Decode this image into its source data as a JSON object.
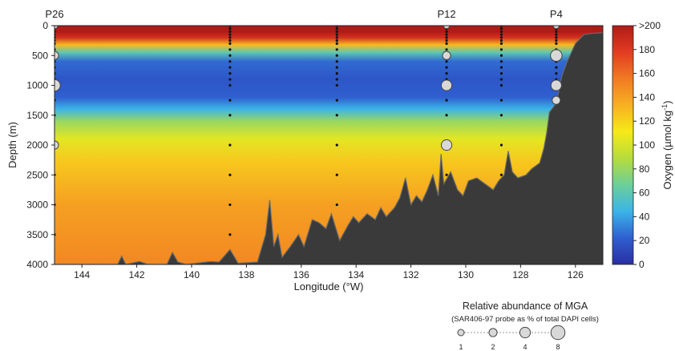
{
  "chart_data": {
    "type": "heatmap",
    "xlabel": "Longitude (°W)",
    "ylabel": "Depth (m)",
    "xlim": [
      145,
      125
    ],
    "ylim": [
      0,
      4000
    ],
    "x_ticks": [
      "144",
      "142",
      "140",
      "138",
      "136",
      "134",
      "132",
      "130",
      "128",
      "126"
    ],
    "y_ticks": [
      "0",
      "500",
      "1000",
      "1500",
      "2000",
      "2500",
      "3000",
      "3500",
      "4000"
    ],
    "colorbar": {
      "label": "Oxygen (µmol kg",
      "label_exponent": "-1",
      "label_close": ")",
      "ticks": [
        ">200",
        "180",
        "160",
        "140",
        "120",
        "100",
        "80",
        "60",
        "40",
        "20",
        "0"
      ],
      "range": [
        0,
        200
      ],
      "colors": [
        "#2a2fa3",
        "#2f5fcf",
        "#3bb4e8",
        "#6ccf9a",
        "#b6dc3c",
        "#f6ea18",
        "#f7b021",
        "#f07b23",
        "#e23c22",
        "#b01a17"
      ]
    },
    "oxygen_profile": [
      {
        "depth": 0,
        "oxygen": 210
      },
      {
        "depth": 100,
        "oxygen": 205
      },
      {
        "depth": 200,
        "oxygen": 185
      },
      {
        "depth": 320,
        "oxygen": 130
      },
      {
        "depth": 450,
        "oxygen": 60
      },
      {
        "depth": 600,
        "oxygen": 25
      },
      {
        "depth": 900,
        "oxygen": 18
      },
      {
        "depth": 1200,
        "oxygen": 22
      },
      {
        "depth": 1400,
        "oxygen": 45
      },
      {
        "depth": 1600,
        "oxygen": 80
      },
      {
        "depth": 1900,
        "oxygen": 105
      },
      {
        "depth": 2300,
        "oxygen": 125
      },
      {
        "depth": 3000,
        "oxygen": 140
      },
      {
        "depth": 4000,
        "oxygen": 150
      }
    ],
    "seafloor": [
      [
        145,
        4000
      ],
      [
        142.7,
        4000
      ],
      [
        142.55,
        3860
      ],
      [
        142.4,
        4000
      ],
      [
        141.9,
        3950
      ],
      [
        141.6,
        4000
      ],
      [
        140.9,
        4000
      ],
      [
        140.7,
        3800
      ],
      [
        140.5,
        3960
      ],
      [
        140.2,
        4000
      ],
      [
        139.3,
        3950
      ],
      [
        139.0,
        3960
      ],
      [
        138.6,
        3750
      ],
      [
        138.3,
        3980
      ],
      [
        137.6,
        3960
      ],
      [
        137.3,
        3500
      ],
      [
        137.15,
        2920
      ],
      [
        137.0,
        3700
      ],
      [
        136.85,
        3500
      ],
      [
        136.7,
        3880
      ],
      [
        136.4,
        3700
      ],
      [
        136.1,
        3500
      ],
      [
        135.9,
        3700
      ],
      [
        135.6,
        3250
      ],
      [
        135.35,
        3300
      ],
      [
        135.1,
        3400
      ],
      [
        134.9,
        3150
      ],
      [
        134.6,
        3600
      ],
      [
        134.3,
        3350
      ],
      [
        134.1,
        3200
      ],
      [
        133.9,
        3300
      ],
      [
        133.6,
        3150
      ],
      [
        133.3,
        3250
      ],
      [
        133.1,
        3050
      ],
      [
        132.9,
        3200
      ],
      [
        132.6,
        3050
      ],
      [
        132.4,
        2880
      ],
      [
        132.2,
        2550
      ],
      [
        132.0,
        3000
      ],
      [
        131.8,
        2850
      ],
      [
        131.6,
        2950
      ],
      [
        131.4,
        2750
      ],
      [
        131.2,
        2500
      ],
      [
        131.0,
        2850
      ],
      [
        130.9,
        2150
      ],
      [
        130.8,
        2650
      ],
      [
        130.55,
        2450
      ],
      [
        130.3,
        2750
      ],
      [
        130.1,
        2850
      ],
      [
        129.9,
        2600
      ],
      [
        129.6,
        2550
      ],
      [
        129.3,
        2650
      ],
      [
        129.0,
        2750
      ],
      [
        128.8,
        2600
      ],
      [
        128.6,
        2500
      ],
      [
        128.45,
        2100
      ],
      [
        128.3,
        2450
      ],
      [
        128.1,
        2550
      ],
      [
        127.8,
        2500
      ],
      [
        127.6,
        2400
      ],
      [
        127.3,
        2300
      ],
      [
        127.15,
        2050
      ],
      [
        127.05,
        1800
      ],
      [
        126.95,
        1450
      ],
      [
        126.7,
        1300
      ],
      [
        126.5,
        850
      ],
      [
        126.3,
        600
      ],
      [
        126.0,
        300
      ],
      [
        125.7,
        150
      ],
      [
        125.4,
        130
      ],
      [
        125,
        120
      ]
    ],
    "cast_longitudes": [
      145,
      138.6,
      134.7,
      130.7,
      128.7,
      126.7
    ],
    "cast_depths": [
      0,
      50,
      100,
      150,
      200,
      250,
      300,
      400,
      500,
      600,
      700,
      800,
      900,
      1000,
      1250,
      1500,
      2000,
      2500,
      3000,
      3500,
      4000
    ],
    "stations": [
      {
        "name": "P26",
        "lon": 145
      },
      {
        "name": "P12",
        "lon": 130.7
      },
      {
        "name": "P4",
        "lon": 126.7
      }
    ],
    "mga_samples": [
      {
        "lon": 145,
        "depth": 0,
        "abundance": 1
      },
      {
        "lon": 145,
        "depth": 500,
        "abundance": 2
      },
      {
        "lon": 145,
        "depth": 1000,
        "abundance": 5
      },
      {
        "lon": 145,
        "depth": 2000,
        "abundance": 2
      },
      {
        "lon": 130.7,
        "depth": 0,
        "abundance": 0.8
      },
      {
        "lon": 130.7,
        "depth": 500,
        "abundance": 2
      },
      {
        "lon": 130.7,
        "depth": 1000,
        "abundance": 4
      },
      {
        "lon": 130.7,
        "depth": 2000,
        "abundance": 4
      },
      {
        "lon": 126.7,
        "depth": 0,
        "abundance": 0.8
      },
      {
        "lon": 126.7,
        "depth": 500,
        "abundance": 5
      },
      {
        "lon": 126.7,
        "depth": 1000,
        "abundance": 4
      },
      {
        "lon": 126.7,
        "depth": 1250,
        "abundance": 2
      }
    ],
    "legend": {
      "title": "Relative abundance of MGA",
      "subtitle": "(SAR406-97 probe as % of total DAPI cells)",
      "items": [
        {
          "label": "1",
          "value": 1
        },
        {
          "label": "2",
          "value": 2
        },
        {
          "label": "4",
          "value": 4
        },
        {
          "label": "8",
          "value": 8
        }
      ]
    }
  }
}
